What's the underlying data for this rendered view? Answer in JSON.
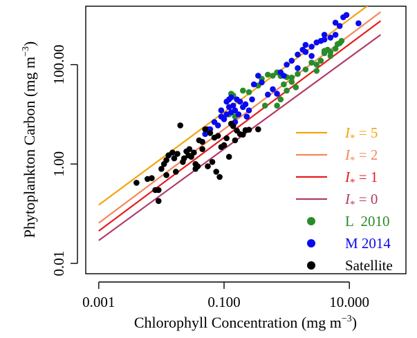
{
  "chart_data": {
    "type": "scatter",
    "xlabel_main": "Chlorophyll Concentration (mg m",
    "xlabel_sup": "−3",
    "xlabel_end": ")",
    "ylabel_main": "Phytoplankton Carbon (mg m",
    "ylabel_sup": "−3",
    "ylabel_end": ")",
    "x_scale": "log10",
    "y_scale": "log10",
    "xlim": [
      0.00062,
      80
    ],
    "ylim": [
      0.0062,
      1500
    ],
    "x_ticks": [
      {
        "value": 0.001,
        "label": "0.001"
      },
      {
        "value": 0.1,
        "label": "0.100"
      },
      {
        "value": 10,
        "label": "10.000"
      }
    ],
    "y_ticks": [
      {
        "value": 0.01,
        "label": "0.01"
      },
      {
        "value": 1,
        "label": "1.00"
      },
      {
        "value": 100,
        "label": "100.00"
      }
    ],
    "legend_position": "bottom-right",
    "lines": [
      {
        "label_sym": "I",
        "label_sub": "*",
        "label_eq": " = 5",
        "color": "#f5a30a",
        "x": [
          0.001,
          31.6
        ],
        "y": [
          0.15,
          2400
        ]
      },
      {
        "label_sym": "I",
        "label_sub": "*",
        "label_eq": " = 2",
        "color": "#f3875a",
        "x": [
          0.001,
          31.6
        ],
        "y": [
          0.065,
          1150
        ]
      },
      {
        "label_sym": "I",
        "label_sub": "*",
        "label_eq": " = 1",
        "color": "#e51c1c",
        "x": [
          0.001,
          31.6
        ],
        "y": [
          0.045,
          760
        ]
      },
      {
        "label_sym": "I",
        "label_sub": "*",
        "label_eq": " = 0",
        "color": "#b03a6b",
        "x": [
          0.001,
          31.6
        ],
        "y": [
          0.029,
          400
        ]
      }
    ],
    "series": [
      {
        "name": "L  2010",
        "color": "#2a8b2a",
        "points": [
          [
            0.13,
            26
          ],
          [
            0.14,
            24
          ],
          [
            0.12,
            10
          ],
          [
            0.15,
            9
          ],
          [
            0.35,
            38
          ],
          [
            0.4,
            52
          ],
          [
            0.5,
            63
          ],
          [
            0.6,
            60
          ],
          [
            0.7,
            70
          ],
          [
            0.8,
            59
          ],
          [
            1.0,
            56
          ],
          [
            1.2,
            55
          ],
          [
            1.5,
            65
          ],
          [
            2.0,
            80
          ],
          [
            2.5,
            110
          ],
          [
            3.0,
            100
          ],
          [
            3.5,
            120
          ],
          [
            4.0,
            190
          ],
          [
            4.5,
            200
          ],
          [
            5.0,
            150
          ],
          [
            6.0,
            210
          ],
          [
            6.5,
            260
          ],
          [
            7.0,
            270
          ],
          [
            7.5,
            300
          ],
          [
            0.2,
            30
          ],
          [
            0.25,
            28
          ],
          [
            0.7,
            15
          ],
          [
            0.8,
            20
          ],
          [
            1.0,
            30
          ],
          [
            0.9,
            40
          ],
          [
            1.2,
            45
          ],
          [
            1.4,
            35
          ],
          [
            0.45,
            15
          ],
          [
            3.0,
            75
          ],
          [
            4.0,
            170
          ],
          [
            5.0,
            180
          ]
        ]
      },
      {
        "name": "M 2014",
        "color": "#0a0aee",
        "points": [
          [
            0.05,
            4
          ],
          [
            0.055,
            5
          ],
          [
            0.08,
            6
          ],
          [
            0.1,
            8
          ],
          [
            0.12,
            14
          ],
          [
            0.14,
            15
          ],
          [
            0.15,
            12
          ],
          [
            0.2,
            14
          ],
          [
            0.25,
            12
          ],
          [
            0.3,
            40
          ],
          [
            0.35,
            60
          ],
          [
            0.4,
            44
          ],
          [
            0.5,
            25
          ],
          [
            0.6,
            32
          ],
          [
            0.7,
            26
          ],
          [
            0.8,
            70
          ],
          [
            0.9,
            60
          ],
          [
            1.0,
            100
          ],
          [
            1.2,
            120
          ],
          [
            1.5,
            160
          ],
          [
            1.8,
            200
          ],
          [
            2.0,
            180
          ],
          [
            2.5,
            230
          ],
          [
            3.0,
            280
          ],
          [
            3.5,
            300
          ],
          [
            4.0,
            320
          ],
          [
            5.0,
            350
          ],
          [
            6.0,
            400
          ],
          [
            7.0,
            600
          ],
          [
            8.0,
            900
          ],
          [
            9.0,
            1000
          ],
          [
            14.0,
            680
          ],
          [
            0.09,
            12
          ],
          [
            0.11,
            18
          ],
          [
            0.12,
            20
          ],
          [
            0.13,
            22
          ],
          [
            0.16,
            20
          ],
          [
            0.18,
            18
          ],
          [
            0.22,
            16
          ],
          [
            0.28,
            20
          ],
          [
            0.06,
            5
          ],
          [
            0.07,
            7
          ],
          [
            0.09,
            9
          ],
          [
            0.15,
            7
          ],
          [
            0.23,
            9
          ],
          [
            0.17,
            10
          ],
          [
            0.11,
            10
          ],
          [
            0.13,
            11
          ],
          [
            1.5,
            85
          ],
          [
            2.0,
            250
          ],
          [
            2.5,
            150
          ],
          [
            4.0,
            400
          ],
          [
            6.0,
            700
          ]
        ]
      },
      {
        "name": "Satellite",
        "color": "#000000",
        "points": [
          [
            0.004,
            0.42
          ],
          [
            0.006,
            0.5
          ],
          [
            0.007,
            0.52
          ],
          [
            0.008,
            0.3
          ],
          [
            0.009,
            0.18
          ],
          [
            0.01,
            0.8
          ],
          [
            0.011,
            1.0
          ],
          [
            0.012,
            1.2
          ],
          [
            0.013,
            1.5
          ],
          [
            0.015,
            1.7
          ],
          [
            0.016,
            1.3
          ],
          [
            0.018,
            1.6
          ],
          [
            0.02,
            6.0
          ],
          [
            0.022,
            1.1
          ],
          [
            0.025,
            1.8
          ],
          [
            0.028,
            2.0
          ],
          [
            0.03,
            1.4
          ],
          [
            0.035,
            1.0
          ],
          [
            0.04,
            3.0
          ],
          [
            0.045,
            2.8
          ],
          [
            0.05,
            5.0
          ],
          [
            0.06,
            4.2
          ],
          [
            0.07,
            3.4
          ],
          [
            0.08,
            3.7
          ],
          [
            0.09,
            2.2
          ],
          [
            0.1,
            2.4
          ],
          [
            0.11,
            3.3
          ],
          [
            0.12,
            1.4
          ],
          [
            0.13,
            6.5
          ],
          [
            0.14,
            5.8
          ],
          [
            0.15,
            3.0
          ],
          [
            0.16,
            4.7
          ],
          [
            0.18,
            4.0
          ],
          [
            0.2,
            3.9
          ],
          [
            0.22,
            4.8
          ],
          [
            0.25,
            4.9
          ],
          [
            0.35,
            5.0
          ],
          [
            0.045,
            2.0
          ],
          [
            0.035,
            0.8
          ],
          [
            0.055,
            0.9
          ],
          [
            0.065,
            1.1
          ],
          [
            0.075,
            0.7
          ],
          [
            0.085,
            0.55
          ],
          [
            0.009,
            0.3
          ],
          [
            0.012,
            0.6
          ],
          [
            0.017,
            0.7
          ],
          [
            0.023,
            1.3
          ],
          [
            0.027,
            1.5
          ],
          [
            0.033,
            1.7
          ],
          [
            0.038,
            0.9
          ]
        ]
      }
    ]
  }
}
